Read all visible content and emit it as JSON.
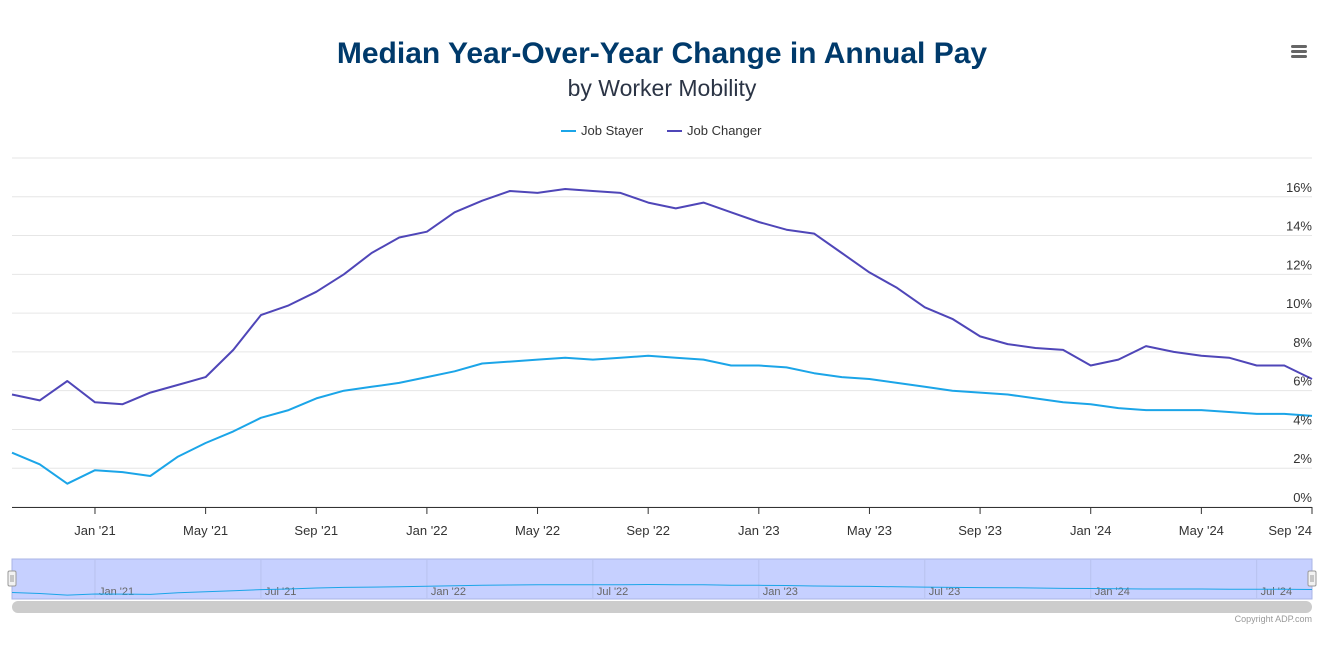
{
  "chart_data": {
    "type": "line",
    "title": "Median Year-Over-Year Change in Annual Pay",
    "subtitle": "by Worker Mobility",
    "xlabel": "",
    "ylabel": "",
    "x": [
      "2020-10",
      "2020-11",
      "2020-12",
      "2021-01",
      "2021-02",
      "2021-03",
      "2021-04",
      "2021-05",
      "2021-06",
      "2021-07",
      "2021-08",
      "2021-09",
      "2021-10",
      "2021-11",
      "2021-12",
      "2022-01",
      "2022-02",
      "2022-03",
      "2022-04",
      "2022-05",
      "2022-06",
      "2022-07",
      "2022-08",
      "2022-09",
      "2022-10",
      "2022-11",
      "2022-12",
      "2023-01",
      "2023-02",
      "2023-03",
      "2023-04",
      "2023-05",
      "2023-06",
      "2023-07",
      "2023-08",
      "2023-09",
      "2023-10",
      "2023-11",
      "2023-12",
      "2024-01",
      "2024-02",
      "2024-03",
      "2024-04",
      "2024-05",
      "2024-06",
      "2024-07",
      "2024-08",
      "2024-09"
    ],
    "series": [
      {
        "name": "Job Stayer",
        "color": "#1ba5e8",
        "values": [
          2.8,
          2.2,
          1.2,
          1.9,
          1.8,
          1.6,
          2.6,
          3.3,
          3.9,
          4.6,
          5.0,
          5.6,
          6.0,
          6.2,
          6.4,
          6.7,
          7.0,
          7.4,
          7.5,
          7.6,
          7.7,
          7.6,
          7.7,
          7.8,
          7.7,
          7.6,
          7.3,
          7.3,
          7.2,
          6.9,
          6.7,
          6.6,
          6.4,
          6.2,
          6.0,
          5.9,
          5.8,
          5.6,
          5.4,
          5.3,
          5.1,
          5.0,
          5.0,
          5.0,
          4.9,
          4.8,
          4.8,
          4.7
        ]
      },
      {
        "name": "Job Changer",
        "color": "#4f46b8",
        "values": [
          5.8,
          5.5,
          6.5,
          5.4,
          5.3,
          5.9,
          6.3,
          6.7,
          8.1,
          9.9,
          10.4,
          11.1,
          12.0,
          13.1,
          13.9,
          14.2,
          15.2,
          15.8,
          16.3,
          16.2,
          16.4,
          16.3,
          16.2,
          15.7,
          15.4,
          15.7,
          15.2,
          14.7,
          14.3,
          14.1,
          13.1,
          12.1,
          11.3,
          10.3,
          9.7,
          8.8,
          8.4,
          8.2,
          8.1,
          7.3,
          7.6,
          8.3,
          8.0,
          7.8,
          7.7,
          7.3,
          7.3,
          6.6
        ]
      }
    ],
    "ylim": [
      0,
      18
    ],
    "y_ticks": [
      0,
      2,
      4,
      6,
      8,
      10,
      12,
      14,
      16
    ],
    "y_tick_format": "{v}%",
    "x_ticks": [
      "Jan '21",
      "May '21",
      "Sep '21",
      "Jan '22",
      "May '22",
      "Sep '22",
      "Jan '23",
      "May '23",
      "Sep '23",
      "Jan '24",
      "May '24",
      "Sep '24"
    ],
    "x_tick_index": [
      3,
      7,
      11,
      15,
      19,
      23,
      27,
      31,
      35,
      39,
      43,
      47
    ],
    "navigator_ticks": [
      "Jan '21",
      "Jul '21",
      "Jan '22",
      "Jul '22",
      "Jan '23",
      "Jul '23",
      "Jan '24",
      "Jul '24"
    ],
    "navigator_tick_index": [
      3,
      9,
      15,
      21,
      27,
      33,
      39,
      45
    ],
    "grid": true,
    "legend_position": "top-center",
    "y_axis_side": "right"
  },
  "colors": {
    "title": "#003a6b",
    "subtitle": "#2b3445",
    "grid": "#e6e6e6",
    "navigator_fill": "#c6d0ff",
    "navigator_border": "#aab4e6",
    "scrollbar": "#cccccc",
    "axis": "#333333"
  },
  "menu": {
    "icon": "hamburger-menu-icon",
    "label": "Chart context menu"
  },
  "credits": "Copyright ADP.com"
}
